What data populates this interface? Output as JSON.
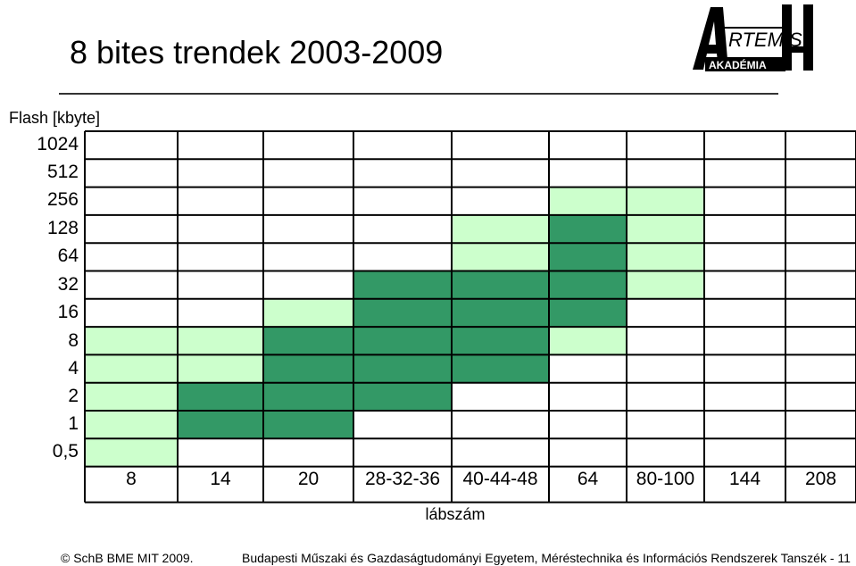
{
  "header": {
    "title": "8 bites trendek 2003-2009",
    "logo_text_main": "RTEMIS",
    "logo_text_sub": "AKADÉMIA"
  },
  "footer": {
    "copyright_symbol": "©",
    "left": "SchB BME MIT  2009.",
    "right": "Budapesti Műszaki és Gazdaságtudományi Egyetem, Méréstechnika és Információs Rendszerek Tanszék - 11"
  },
  "colors": {
    "dark_green": "#339966",
    "light_green": "#ccffcc",
    "grid_line": "#000000",
    "empty": "#ffffff"
  },
  "chart_data": {
    "type": "heatmap",
    "title": "8 bites trendek 2003-2009",
    "ylabel": "Flash [kbyte]",
    "xlabel": "lábszám",
    "x_categories": [
      "8",
      "14",
      "20",
      "28-32-36",
      "40-44-48",
      "64",
      "80-100",
      "144",
      "208"
    ],
    "y_categories": [
      "1024",
      "512",
      "256",
      "128",
      "64",
      "32",
      "16",
      "8",
      "4",
      "2",
      "1",
      "0,5"
    ],
    "legend": "none",
    "value_meaning": {
      "0": "none",
      "1": "light green",
      "2": "dark green"
    },
    "matrix": [
      [
        0,
        0,
        0,
        0,
        0,
        0,
        0,
        0,
        0
      ],
      [
        0,
        0,
        0,
        0,
        0,
        0,
        0,
        0,
        0
      ],
      [
        0,
        0,
        0,
        0,
        0,
        1,
        1,
        0,
        0
      ],
      [
        0,
        0,
        0,
        0,
        1,
        2,
        1,
        0,
        0
      ],
      [
        0,
        0,
        0,
        0,
        1,
        2,
        1,
        0,
        0
      ],
      [
        0,
        0,
        0,
        2,
        2,
        2,
        1,
        0,
        0
      ],
      [
        0,
        0,
        1,
        2,
        2,
        2,
        0,
        0,
        0
      ],
      [
        1,
        1,
        2,
        2,
        2,
        1,
        0,
        0,
        0
      ],
      [
        1,
        1,
        2,
        2,
        2,
        0,
        0,
        0,
        0
      ],
      [
        1,
        2,
        2,
        2,
        0,
        0,
        0,
        0,
        0
      ],
      [
        1,
        2,
        2,
        0,
        0,
        0,
        0,
        0,
        0
      ],
      [
        1,
        0,
        0,
        0,
        0,
        0,
        0,
        0,
        0
      ]
    ]
  }
}
